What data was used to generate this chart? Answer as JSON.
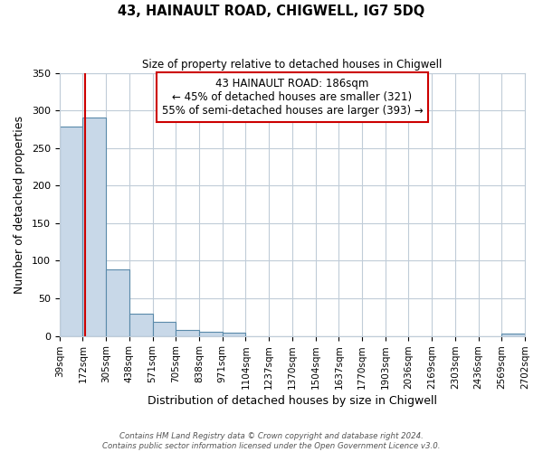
{
  "title": "43, HAINAULT ROAD, CHIGWELL, IG7 5DQ",
  "subtitle": "Size of property relative to detached houses in Chigwell",
  "xlabel": "Distribution of detached houses by size in Chigwell",
  "ylabel": "Number of detached properties",
  "bar_edges": [
    39,
    172,
    305,
    438,
    571,
    705,
    838,
    971,
    1104,
    1237,
    1370,
    1504,
    1637,
    1770,
    1903,
    2036,
    2169,
    2303,
    2436,
    2569,
    2702
  ],
  "bar_heights": [
    278,
    290,
    88,
    29,
    19,
    8,
    6,
    4,
    0,
    0,
    0,
    0,
    0,
    0,
    0,
    0,
    0,
    0,
    0,
    3
  ],
  "bar_color": "#c8d8e8",
  "bar_edge_color": "#5a8aaa",
  "ylim": [
    0,
    350
  ],
  "yticks": [
    0,
    50,
    100,
    150,
    200,
    250,
    300,
    350
  ],
  "property_size": 186,
  "annotation_title": "43 HAINAULT ROAD: 186sqm",
  "annotation_line1": "← 45% of detached houses are smaller (321)",
  "annotation_line2": "55% of semi-detached houses are larger (393) →",
  "vline_color": "#cc0000",
  "annotation_box_color": "#cc0000",
  "footer_line1": "Contains HM Land Registry data © Crown copyright and database right 2024.",
  "footer_line2": "Contains public sector information licensed under the Open Government Licence v3.0.",
  "background_color": "#ffffff",
  "grid_color": "#c0ccd8"
}
